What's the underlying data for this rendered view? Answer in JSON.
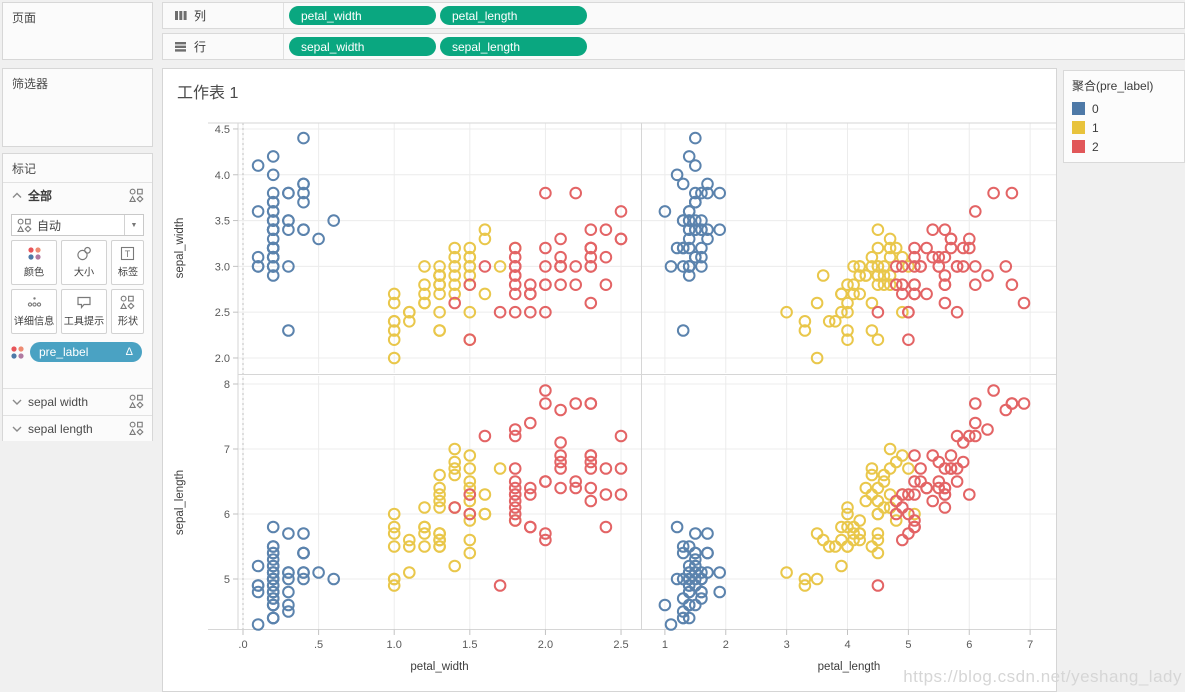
{
  "shelves": {
    "pill_color": "#0aa780",
    "columns": {
      "label": "列",
      "pills": [
        "petal_width",
        "petal_length"
      ]
    },
    "rows": {
      "label": "行",
      "pills": [
        "sepal_width",
        "sepal_length"
      ]
    }
  },
  "sidebar": {
    "pages": {
      "label": "页面"
    },
    "filters": {
      "label": "筛选器"
    },
    "marks": {
      "label": "标记",
      "all_label": "全部",
      "mark_type": "自动",
      "buttons": [
        {
          "label": "颜色",
          "icon": "color-dots"
        },
        {
          "label": "大小",
          "icon": "size-circles"
        },
        {
          "label": "标签",
          "icon": "label-t"
        },
        {
          "label": "详细信息",
          "icon": "detail-dots"
        },
        {
          "label": "工具提示",
          "icon": "tooltip-bubble"
        },
        {
          "label": "形状",
          "icon": "shapes"
        }
      ],
      "color_pill": {
        "label": "pre_label",
        "delta": "Δ",
        "color": "#4aa2c3"
      },
      "cards": [
        "sepal width",
        "sepal length"
      ]
    }
  },
  "worksheet": {
    "title": "工作表 1"
  },
  "legend": {
    "title": "聚合(pre_label)",
    "items": [
      {
        "label": "0",
        "color": "#4e79a7"
      },
      {
        "label": "1",
        "color": "#e8c33c"
      },
      {
        "label": "2",
        "color": "#e15759"
      }
    ]
  },
  "watermark": "https://blog.csdn.net/yeshang_lady",
  "chart_data": {
    "type": "scatter",
    "layout": "2x2-matrix",
    "x_axes": [
      {
        "field": "petal_width",
        "range": [
          -0.033,
          2.632
        ],
        "ticks": [
          0,
          0.5,
          1.0,
          1.5,
          2.0,
          2.5
        ],
        "tick_labels": [
          ".0",
          ".5",
          "1.0",
          "1.5",
          "2.0",
          "2.5"
        ],
        "zero_line": true
      },
      {
        "field": "petal_length",
        "range": [
          0.624,
          7.425
        ],
        "ticks": [
          1,
          2,
          3,
          4,
          5,
          6,
          7
        ],
        "tick_labels": [
          "1",
          "2",
          "3",
          "4",
          "5",
          "6",
          "7"
        ],
        "zero_line": false
      }
    ],
    "y_axes": [
      {
        "field": "sepal_width",
        "range": [
          1.836,
          4.565
        ],
        "ticks": [
          2.0,
          2.5,
          3.0,
          3.5,
          4.0,
          4.5
        ],
        "tick_labels": [
          "2.0",
          "2.5",
          "3.0",
          "3.5",
          "4.0",
          "4.5"
        ]
      },
      {
        "field": "sepal_length",
        "range": [
          4.231,
          8.123
        ],
        "ticks": [
          5,
          6,
          7,
          8
        ],
        "tick_labels": [
          "5",
          "6",
          "7",
          "8"
        ]
      }
    ],
    "series_colors": {
      "0": "#4e79a7",
      "1": "#e8c33c",
      "2": "#e15759"
    },
    "point_fields": [
      "sepal_length",
      "sepal_width",
      "petal_length",
      "petal_width",
      "pre_label"
    ],
    "points": [
      [
        5.1,
        3.5,
        1.4,
        0.2,
        0
      ],
      [
        4.9,
        3.0,
        1.4,
        0.2,
        0
      ],
      [
        4.7,
        3.2,
        1.3,
        0.2,
        0
      ],
      [
        4.6,
        3.1,
        1.5,
        0.2,
        0
      ],
      [
        5.0,
        3.6,
        1.4,
        0.2,
        0
      ],
      [
        5.4,
        3.9,
        1.7,
        0.4,
        0
      ],
      [
        4.6,
        3.4,
        1.4,
        0.3,
        0
      ],
      [
        5.0,
        3.4,
        1.5,
        0.2,
        0
      ],
      [
        4.4,
        2.9,
        1.4,
        0.2,
        0
      ],
      [
        4.9,
        3.1,
        1.5,
        0.1,
        0
      ],
      [
        5.4,
        3.7,
        1.5,
        0.2,
        0
      ],
      [
        4.8,
        3.4,
        1.6,
        0.2,
        0
      ],
      [
        4.8,
        3.0,
        1.4,
        0.1,
        0
      ],
      [
        4.3,
        3.0,
        1.1,
        0.1,
        0
      ],
      [
        5.8,
        4.0,
        1.2,
        0.2,
        0
      ],
      [
        5.7,
        4.4,
        1.5,
        0.4,
        0
      ],
      [
        5.4,
        3.9,
        1.3,
        0.4,
        0
      ],
      [
        5.1,
        3.5,
        1.4,
        0.3,
        0
      ],
      [
        5.7,
        3.8,
        1.7,
        0.3,
        0
      ],
      [
        5.1,
        3.8,
        1.5,
        0.3,
        0
      ],
      [
        5.4,
        3.4,
        1.7,
        0.2,
        0
      ],
      [
        5.1,
        3.7,
        1.5,
        0.4,
        0
      ],
      [
        4.6,
        3.6,
        1.0,
        0.2,
        0
      ],
      [
        5.1,
        3.3,
        1.7,
        0.5,
        0
      ],
      [
        4.8,
        3.4,
        1.9,
        0.2,
        0
      ],
      [
        5.0,
        3.0,
        1.6,
        0.2,
        0
      ],
      [
        5.0,
        3.4,
        1.6,
        0.4,
        0
      ],
      [
        5.2,
        3.5,
        1.5,
        0.2,
        0
      ],
      [
        5.2,
        3.4,
        1.4,
        0.2,
        0
      ],
      [
        4.7,
        3.2,
        1.6,
        0.2,
        0
      ],
      [
        4.8,
        3.1,
        1.6,
        0.2,
        0
      ],
      [
        5.4,
        3.4,
        1.5,
        0.4,
        0
      ],
      [
        5.2,
        4.1,
        1.5,
        0.1,
        0
      ],
      [
        5.5,
        4.2,
        1.4,
        0.2,
        0
      ],
      [
        4.9,
        3.1,
        1.5,
        0.2,
        0
      ],
      [
        5.0,
        3.2,
        1.2,
        0.2,
        0
      ],
      [
        5.5,
        3.5,
        1.3,
        0.2,
        0
      ],
      [
        4.9,
        3.6,
        1.4,
        0.1,
        0
      ],
      [
        4.4,
        3.0,
        1.3,
        0.2,
        0
      ],
      [
        5.1,
        3.4,
        1.5,
        0.2,
        0
      ],
      [
        5.0,
        3.5,
        1.3,
        0.3,
        0
      ],
      [
        4.5,
        2.3,
        1.3,
        0.3,
        0
      ],
      [
        4.4,
        3.2,
        1.3,
        0.2,
        0
      ],
      [
        5.0,
        3.5,
        1.6,
        0.6,
        0
      ],
      [
        5.1,
        3.8,
        1.9,
        0.4,
        0
      ],
      [
        4.8,
        3.0,
        1.4,
        0.3,
        0
      ],
      [
        5.1,
        3.8,
        1.6,
        0.2,
        0
      ],
      [
        4.6,
        3.2,
        1.4,
        0.2,
        0
      ],
      [
        5.3,
        3.7,
        1.5,
        0.2,
        0
      ],
      [
        5.0,
        3.3,
        1.4,
        0.2,
        0
      ],
      [
        7.0,
        3.2,
        4.7,
        1.4,
        1
      ],
      [
        6.4,
        3.2,
        4.5,
        1.5,
        1
      ],
      [
        6.9,
        3.1,
        4.9,
        1.5,
        1
      ],
      [
        5.5,
        2.3,
        4.0,
        1.3,
        1
      ],
      [
        6.5,
        2.8,
        4.6,
        1.5,
        1
      ],
      [
        5.7,
        2.8,
        4.5,
        1.3,
        1
      ],
      [
        6.3,
        3.3,
        4.7,
        1.6,
        1
      ],
      [
        4.9,
        2.4,
        3.3,
        1.0,
        1
      ],
      [
        6.6,
        2.9,
        4.6,
        1.3,
        1
      ],
      [
        5.2,
        2.7,
        3.9,
        1.4,
        1
      ],
      [
        5.0,
        2.0,
        3.5,
        1.0,
        1
      ],
      [
        5.9,
        3.0,
        4.2,
        1.5,
        1
      ],
      [
        6.0,
        2.2,
        4.0,
        1.0,
        1
      ],
      [
        6.1,
        2.9,
        4.7,
        1.4,
        1
      ],
      [
        5.6,
        2.9,
        3.6,
        1.3,
        1
      ],
      [
        6.7,
        3.1,
        4.4,
        1.4,
        1
      ],
      [
        5.6,
        3.0,
        4.5,
        1.5,
        1
      ],
      [
        5.8,
        2.7,
        4.1,
        1.0,
        1
      ],
      [
        6.2,
        2.2,
        4.5,
        1.5,
        1
      ],
      [
        5.6,
        2.5,
        3.9,
        1.1,
        1
      ],
      [
        5.9,
        3.2,
        4.8,
        1.8,
        1
      ],
      [
        6.1,
        2.8,
        4.0,
        1.3,
        1
      ],
      [
        6.3,
        2.5,
        4.9,
        1.5,
        1
      ],
      [
        6.1,
        2.8,
        4.7,
        1.2,
        1
      ],
      [
        6.4,
        2.9,
        4.3,
        1.3,
        1
      ],
      [
        6.6,
        3.0,
        4.4,
        1.4,
        1
      ],
      [
        6.8,
        2.8,
        4.8,
        1.4,
        1
      ],
      [
        6.7,
        3.0,
        5.0,
        1.7,
        1
      ],
      [
        6.0,
        2.9,
        4.5,
        1.5,
        1
      ],
      [
        5.7,
        2.6,
        3.5,
        1.0,
        1
      ],
      [
        5.5,
        2.4,
        3.8,
        1.1,
        1
      ],
      [
        5.5,
        2.4,
        3.7,
        1.0,
        1
      ],
      [
        5.8,
        2.7,
        3.9,
        1.2,
        1
      ],
      [
        6.0,
        2.7,
        5.1,
        1.6,
        1
      ],
      [
        5.4,
        3.0,
        4.5,
        1.5,
        1
      ],
      [
        6.0,
        3.4,
        4.5,
        1.6,
        1
      ],
      [
        6.7,
        3.1,
        4.7,
        1.5,
        1
      ],
      [
        6.3,
        2.3,
        4.4,
        1.3,
        1
      ],
      [
        5.6,
        3.0,
        4.1,
        1.3,
        1
      ],
      [
        5.5,
        2.5,
        4.0,
        1.3,
        1
      ],
      [
        5.5,
        2.6,
        4.4,
        1.2,
        1
      ],
      [
        6.1,
        3.0,
        4.6,
        1.4,
        1
      ],
      [
        5.8,
        2.6,
        4.0,
        1.2,
        1
      ],
      [
        5.0,
        2.3,
        3.3,
        1.0,
        1
      ],
      [
        5.6,
        2.7,
        4.2,
        1.3,
        1
      ],
      [
        5.7,
        3.0,
        4.2,
        1.2,
        1
      ],
      [
        5.7,
        2.9,
        4.2,
        1.3,
        1
      ],
      [
        6.2,
        2.9,
        4.3,
        1.3,
        1
      ],
      [
        5.1,
        2.5,
        3.0,
        1.1,
        1
      ],
      [
        5.7,
        2.8,
        4.1,
        1.3,
        1
      ],
      [
        6.3,
        3.3,
        6.0,
        2.5,
        2
      ],
      [
        5.8,
        2.7,
        5.1,
        1.9,
        2
      ],
      [
        7.1,
        3.0,
        5.9,
        2.1,
        2
      ],
      [
        6.3,
        2.9,
        5.6,
        1.8,
        2
      ],
      [
        6.5,
        3.0,
        5.8,
        2.2,
        2
      ],
      [
        7.6,
        3.0,
        6.6,
        2.1,
        2
      ],
      [
        4.9,
        2.5,
        4.5,
        1.7,
        2
      ],
      [
        7.3,
        2.9,
        6.3,
        1.8,
        2
      ],
      [
        6.7,
        2.5,
        5.8,
        1.8,
        2
      ],
      [
        7.2,
        3.6,
        6.1,
        2.5,
        2
      ],
      [
        6.5,
        3.2,
        5.1,
        2.0,
        2
      ],
      [
        6.4,
        2.7,
        5.3,
        1.9,
        2
      ],
      [
        6.8,
        3.0,
        5.5,
        2.1,
        2
      ],
      [
        5.7,
        2.5,
        5.0,
        2.0,
        2
      ],
      [
        5.8,
        2.8,
        5.1,
        2.4,
        2
      ],
      [
        6.4,
        3.2,
        5.3,
        2.3,
        2
      ],
      [
        6.5,
        3.0,
        5.5,
        1.8,
        2
      ],
      [
        7.7,
        3.8,
        6.7,
        2.2,
        2
      ],
      [
        7.7,
        2.6,
        6.9,
        2.3,
        2
      ],
      [
        6.0,
        2.2,
        5.0,
        1.5,
        2
      ],
      [
        6.9,
        3.2,
        5.7,
        2.3,
        2
      ],
      [
        5.6,
        2.8,
        4.9,
        2.0,
        2
      ],
      [
        7.7,
        2.8,
        6.7,
        2.0,
        2
      ],
      [
        6.3,
        2.7,
        4.9,
        1.8,
        2
      ],
      [
        6.7,
        3.3,
        5.7,
        2.1,
        2
      ],
      [
        7.2,
        3.2,
        6.0,
        1.8,
        2
      ],
      [
        6.2,
        2.8,
        4.8,
        1.8,
        2
      ],
      [
        6.1,
        3.0,
        4.9,
        1.8,
        2
      ],
      [
        6.4,
        2.8,
        5.6,
        2.1,
        2
      ],
      [
        7.2,
        3.0,
        5.8,
        1.6,
        2
      ],
      [
        7.4,
        2.8,
        6.1,
        1.9,
        2
      ],
      [
        7.9,
        3.8,
        6.4,
        2.0,
        2
      ],
      [
        6.4,
        2.8,
        5.6,
        2.2,
        2
      ],
      [
        6.3,
        2.8,
        5.1,
        1.5,
        2
      ],
      [
        6.1,
        2.6,
        5.6,
        1.4,
        2
      ],
      [
        7.7,
        3.0,
        6.1,
        2.3,
        2
      ],
      [
        6.3,
        3.4,
        5.6,
        2.4,
        2
      ],
      [
        6.4,
        3.1,
        5.5,
        1.8,
        2
      ],
      [
        6.0,
        3.0,
        4.8,
        1.8,
        2
      ],
      [
        6.9,
        3.1,
        5.4,
        2.1,
        2
      ],
      [
        6.7,
        3.1,
        5.6,
        2.4,
        2
      ],
      [
        6.9,
        3.1,
        5.1,
        2.3,
        2
      ],
      [
        5.8,
        2.7,
        5.1,
        1.9,
        2
      ],
      [
        6.8,
        3.2,
        5.9,
        2.3,
        2
      ],
      [
        6.7,
        3.3,
        5.7,
        2.5,
        2
      ],
      [
        6.7,
        3.0,
        5.2,
        2.3,
        2
      ],
      [
        6.3,
        2.5,
        5.0,
        1.9,
        2
      ],
      [
        6.5,
        3.0,
        5.2,
        2.0,
        2
      ],
      [
        6.2,
        3.4,
        5.4,
        2.3,
        2
      ],
      [
        5.9,
        3.0,
        5.1,
        1.8,
        2
      ]
    ]
  }
}
